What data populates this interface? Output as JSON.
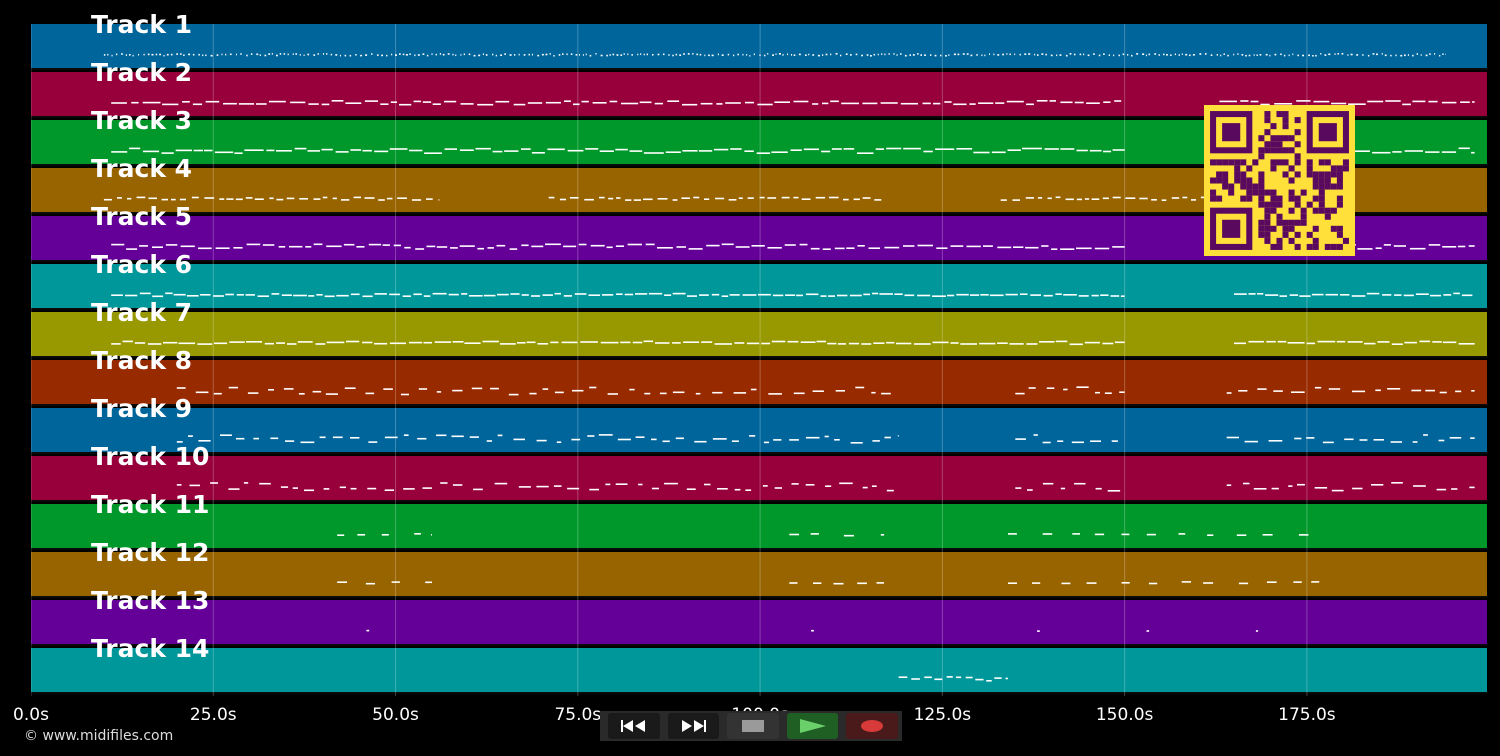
{
  "colors": {
    "background": "#000000",
    "track_palette": [
      "#00659b",
      "#97003b",
      "#00982a",
      "#986400",
      "#640098",
      "#00979b",
      "#989900",
      "#982a00"
    ],
    "note": "#ffffff",
    "qr_fg": "#5a0a5e",
    "qr_bg": "#ffdf3a"
  },
  "tracks": [
    {
      "label": "Track 1",
      "color": "#00659b"
    },
    {
      "label": "Track 2",
      "color": "#97003b"
    },
    {
      "label": "Track 3",
      "color": "#00982a"
    },
    {
      "label": "Track 4",
      "color": "#986400"
    },
    {
      "label": "Track 5",
      "color": "#640098"
    },
    {
      "label": "Track 6",
      "color": "#00979b"
    },
    {
      "label": "Track 7",
      "color": "#989900"
    },
    {
      "label": "Track 8",
      "color": "#982a00"
    },
    {
      "label": "Track 9",
      "color": "#00659b"
    },
    {
      "label": "Track 10",
      "color": "#97003b"
    },
    {
      "label": "Track 11",
      "color": "#00982a"
    },
    {
      "label": "Track 12",
      "color": "#986400"
    },
    {
      "label": "Track 13",
      "color": "#640098"
    },
    {
      "label": "Track 14",
      "color": "#00979b"
    }
  ],
  "timeline": {
    "tick_labels": [
      "0.0s",
      "25.0s",
      "50.0s",
      "75.0s",
      "100.0s",
      "125.0s",
      "150.0s",
      "175.0s"
    ],
    "tick_values": [
      0,
      25,
      50,
      75,
      100,
      125,
      150,
      175
    ],
    "max_seconds": 199.7
  },
  "footer": {
    "copyright": "© www.midifiles.com"
  },
  "transport": {
    "rewind_icon": "rewind-icon",
    "forward_icon": "fast-forward-icon",
    "stop_icon": "stop-icon",
    "play_icon": "play-icon",
    "record_icon": "record-icon"
  }
}
